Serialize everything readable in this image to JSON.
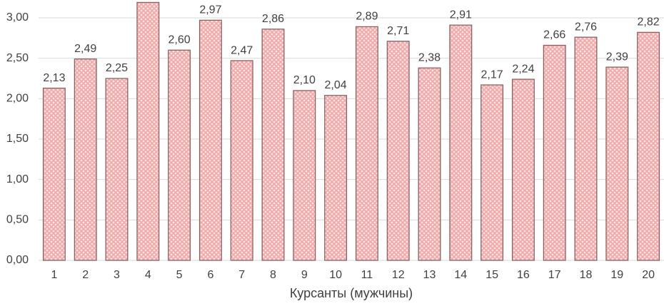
{
  "chart_data": {
    "type": "bar",
    "x_label": "Курсанты (мужчины)",
    "categories": [
      "1",
      "2",
      "3",
      "4",
      "5",
      "6",
      "7",
      "8",
      "9",
      "10",
      "11",
      "12",
      "13",
      "14",
      "15",
      "16",
      "17",
      "18",
      "19",
      "20"
    ],
    "values": [
      2.13,
      2.49,
      2.25,
      3.19,
      2.6,
      2.97,
      2.47,
      2.86,
      2.1,
      2.04,
      2.89,
      2.71,
      2.38,
      2.91,
      2.17,
      2.24,
      2.66,
      2.76,
      2.39,
      2.82
    ],
    "value_labels": [
      "2,13",
      "2,49",
      "2,25",
      null,
      "2,60",
      "2,97",
      "2,47",
      "2,86",
      "2,10",
      "2,04",
      "2,89",
      "2,71",
      "2,38",
      "2,91",
      "2,17",
      "2,24",
      "2,66",
      "2,76",
      "2,39",
      "2,82"
    ],
    "color": "#f2a7a7",
    "ylim": [
      0,
      3.2
    ],
    "yticks": [
      {
        "value": 0,
        "label": "0,00"
      },
      {
        "value": 0.5,
        "label": "0,50"
      },
      {
        "value": 1,
        "label": "1,00"
      },
      {
        "value": 1.5,
        "label": "1,50"
      },
      {
        "value": 2,
        "label": "2,00"
      },
      {
        "value": 2.5,
        "label": "2,50"
      },
      {
        "value": 3,
        "label": "3,00"
      }
    ],
    "grid": true
  }
}
